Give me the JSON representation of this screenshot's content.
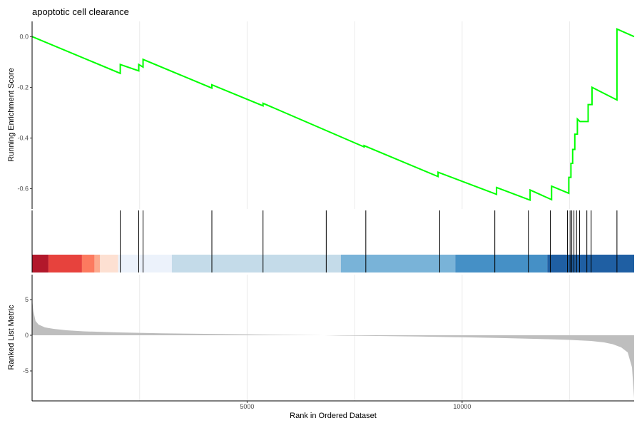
{
  "chart_data": {
    "type": "line",
    "title": "apoptotic cell clearance",
    "xlabel": "Rank in Ordered Dataset",
    "xlim": [
      0,
      14000
    ],
    "x_ticks": [
      5000,
      10000
    ],
    "x_tick_labels": [
      "5000",
      "10000"
    ],
    "grid": true,
    "panels": {
      "enrichment": {
        "ylabel": "Running Enrichment Score",
        "ylim": [
          -0.68,
          0.06
        ],
        "y_ticks": [
          0.0,
          -0.2,
          -0.4,
          -0.6
        ],
        "y_tick_labels": [
          "0.0",
          "-0.2",
          "-0.4",
          "-0.6"
        ],
        "line_color": "#00ff00",
        "series": {
          "x": [
            0,
            2050,
            2050,
            2480,
            2480,
            2580,
            2580,
            4180,
            4180,
            5370,
            5370,
            7720,
            7720,
            9440,
            9440,
            10800,
            10800,
            11580,
            11580,
            12080,
            12080,
            12480,
            12480,
            12530,
            12530,
            12570,
            12570,
            12620,
            12620,
            12680,
            12680,
            12740,
            12740,
            12930,
            12930,
            13020,
            13020,
            13600,
            13600,
            13999
          ],
          "y": [
            0.0,
            -0.145,
            -0.11,
            -0.135,
            -0.11,
            -0.12,
            -0.09,
            -0.203,
            -0.19,
            -0.273,
            -0.263,
            -0.435,
            -0.43,
            -0.552,
            -0.535,
            -0.622,
            -0.595,
            -0.645,
            -0.605,
            -0.643,
            -0.59,
            -0.618,
            -0.555,
            -0.555,
            -0.5,
            -0.5,
            -0.445,
            -0.445,
            -0.385,
            -0.385,
            -0.325,
            -0.335,
            -0.335,
            -0.335,
            -0.268,
            -0.268,
            -0.2,
            -0.25,
            0.03,
            0.0
          ]
        }
      },
      "hits": {
        "positions": [
          2050,
          2480,
          2580,
          4180,
          5370,
          6840,
          7760,
          9480,
          10760,
          11540,
          12050,
          12450,
          12510,
          12550,
          12600,
          12660,
          12730,
          12900,
          13000,
          13600
        ],
        "color_bands": [
          {
            "start": 0,
            "end": 380,
            "color": "#b2182b"
          },
          {
            "start": 380,
            "end": 1160,
            "color": "#e7423d"
          },
          {
            "start": 1160,
            "end": 1450,
            "color": "#fc7a5f"
          },
          {
            "start": 1450,
            "end": 1580,
            "color": "#fcaa8e"
          },
          {
            "start": 1580,
            "end": 2000,
            "color": "#fde0d2"
          },
          {
            "start": 2000,
            "end": 3250,
            "color": "#ecf2fb"
          },
          {
            "start": 3250,
            "end": 7180,
            "color": "#c4dbe9"
          },
          {
            "start": 7180,
            "end": 9840,
            "color": "#79b3d8"
          },
          {
            "start": 9840,
            "end": 11980,
            "color": "#4590c6"
          },
          {
            "start": 11980,
            "end": 14000,
            "color": "#1f5fa3"
          }
        ]
      },
      "ranked": {
        "ylabel": "Ranked List Metric",
        "ylim": [
          -9.2,
          8.5
        ],
        "y_ticks": [
          5,
          0,
          -5
        ],
        "y_tick_labels": [
          "5",
          "0",
          "-5"
        ],
        "fill_color": "#bebebe",
        "curve": {
          "x": [
            0,
            30,
            80,
            150,
            300,
            500,
            800,
            1200,
            2000,
            3000,
            4000,
            5000,
            6000,
            6800,
            7200,
            8000,
            9000,
            10000,
            11000,
            12000,
            12500,
            13000,
            13300,
            13500,
            13700,
            13850,
            13950,
            13999
          ],
          "y": [
            5.0,
            3.4,
            2.0,
            1.5,
            1.1,
            0.9,
            0.7,
            0.55,
            0.4,
            0.28,
            0.2,
            0.12,
            0.05,
            0.0,
            -0.05,
            -0.1,
            -0.18,
            -0.28,
            -0.4,
            -0.55,
            -0.65,
            -0.8,
            -1.0,
            -1.25,
            -1.7,
            -2.4,
            -4.5,
            -8.8
          ]
        }
      }
    }
  }
}
